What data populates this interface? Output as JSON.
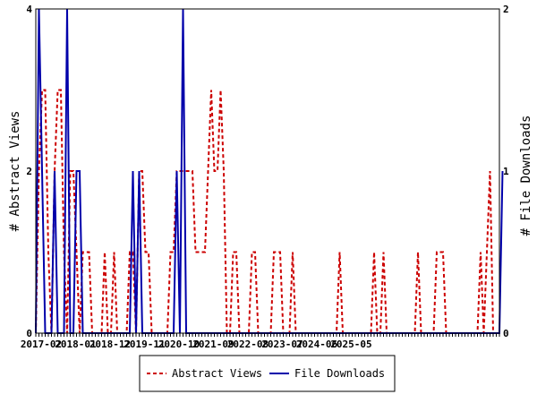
{
  "chart_data": {
    "type": "line",
    "x_ticks": [
      "2017-02",
      "2018-01",
      "2018-12",
      "2019-11",
      "2020-10",
      "2021-09",
      "2022-08",
      "2023-07",
      "2024-06",
      "2025-05"
    ],
    "ylabel_left": "# Abstract Views",
    "ylabel_right": "# File Downloads",
    "y_left_ticks": [
      "0",
      "2",
      "4"
    ],
    "y_right_ticks": [
      "0",
      "1",
      "2"
    ],
    "y_left_range": [
      0,
      4
    ],
    "y_right_range": [
      0,
      2
    ],
    "legend_position": "bottom",
    "series": [
      {
        "name": "Abstract Views",
        "axis": "left",
        "color": "#cc0000",
        "style": "dashed",
        "values": [
          0,
          2,
          3,
          3,
          1,
          0,
          2,
          3,
          3,
          1,
          0,
          2,
          2,
          1,
          0,
          1,
          1,
          1,
          0,
          0,
          0,
          0,
          1,
          0,
          0,
          1,
          0,
          0,
          0,
          0,
          1,
          1,
          0,
          2,
          2,
          1,
          1,
          0,
          0,
          0,
          0,
          0,
          0,
          1,
          1,
          2,
          2,
          2,
          2,
          2,
          2,
          1,
          1,
          1,
          1,
          2,
          3,
          2,
          2,
          3,
          2,
          0,
          0,
          1,
          1,
          0,
          0,
          0,
          0,
          1,
          1,
          0,
          0,
          0,
          0,
          0,
          1,
          1,
          1,
          0,
          0,
          0,
          1,
          0,
          0,
          0,
          0,
          0,
          0,
          0,
          0,
          0,
          0,
          0,
          0,
          0,
          0,
          1,
          0,
          0,
          0,
          0,
          0,
          0,
          0,
          0,
          0,
          0,
          1,
          0,
          0,
          1,
          0,
          0,
          0,
          0,
          0,
          0,
          0,
          0,
          0,
          0,
          1,
          0,
          0,
          0,
          0,
          0,
          1,
          1,
          1,
          0,
          0,
          0,
          0,
          0,
          0,
          0,
          0,
          0,
          0,
          0,
          1,
          0,
          1,
          2,
          0,
          0,
          0
        ]
      },
      {
        "name": "File Downloads",
        "axis": "right",
        "color": "#0000aa",
        "style": "solid",
        "values": [
          0,
          2,
          1,
          0,
          0,
          0,
          1,
          0,
          0,
          0,
          2,
          0,
          0,
          1,
          1,
          0,
          0,
          0,
          0,
          0,
          0,
          0,
          0,
          0,
          0,
          0,
          0,
          0,
          0,
          0,
          0,
          1,
          0,
          1,
          0,
          0,
          0,
          0,
          0,
          0,
          0,
          0,
          0,
          0,
          0,
          1,
          0,
          2,
          0,
          0,
          0,
          0,
          0,
          0,
          0,
          0,
          0,
          0,
          0,
          0,
          0,
          0,
          0,
          0,
          0,
          0,
          0,
          0,
          0,
          0,
          0,
          0,
          0,
          0,
          0,
          0,
          0,
          0,
          0,
          0,
          0,
          0,
          0,
          0,
          0,
          0,
          0,
          0,
          0,
          0,
          0,
          0,
          0,
          0,
          0,
          0,
          0,
          0,
          0,
          0,
          0,
          0,
          0,
          0,
          0,
          0,
          0,
          0,
          0,
          0,
          0,
          0,
          0,
          0,
          0,
          0,
          0,
          0,
          0,
          0,
          0,
          0,
          0,
          0,
          0,
          0,
          0,
          0,
          0,
          0,
          0,
          0,
          0,
          0,
          0,
          0,
          0,
          0,
          0,
          0,
          0,
          0,
          0,
          0,
          0,
          0,
          0,
          0,
          0,
          1
        ]
      }
    ]
  }
}
